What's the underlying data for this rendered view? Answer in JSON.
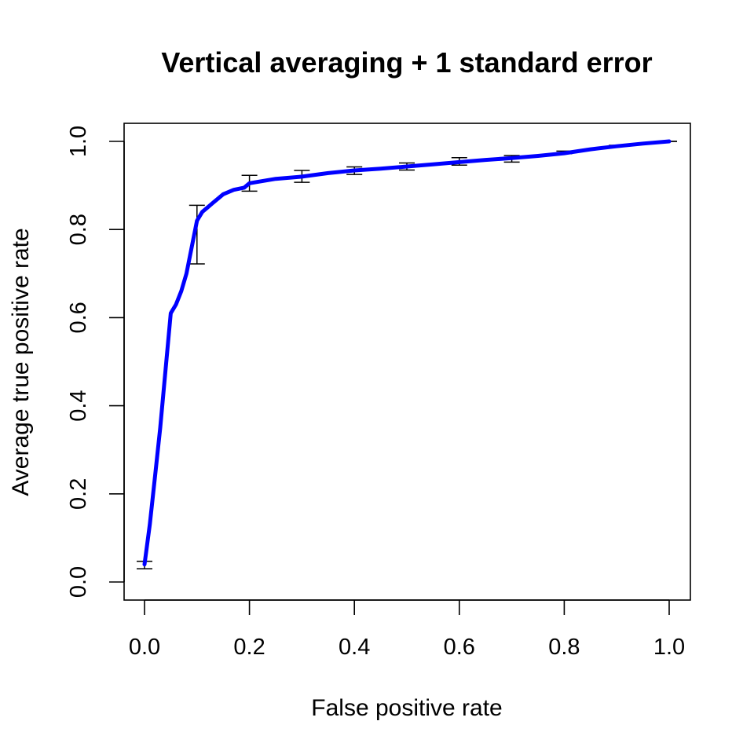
{
  "chart_data": {
    "type": "line",
    "title": "Vertical averaging + 1 standard error",
    "xlabel": "False positive rate",
    "ylabel": "Average true positive rate",
    "xlim": [
      0.0,
      1.0
    ],
    "ylim": [
      0.0,
      1.0
    ],
    "x_ticks": [
      "0.0",
      "0.2",
      "0.4",
      "0.6",
      "0.8",
      "1.0"
    ],
    "y_ticks": [
      "0.0",
      "0.2",
      "0.4",
      "0.6",
      "0.8",
      "1.0"
    ],
    "grid": false,
    "legend": "none",
    "series": [
      {
        "color": "#0000ff",
        "x": [
          0.0,
          0.01,
          0.02,
          0.03,
          0.04,
          0.05,
          0.06,
          0.07,
          0.08,
          0.09,
          0.1,
          0.11,
          0.12,
          0.13,
          0.14,
          0.15,
          0.17,
          0.19,
          0.2,
          0.25,
          0.3,
          0.35,
          0.4,
          0.45,
          0.5,
          0.55,
          0.6,
          0.65,
          0.7,
          0.75,
          0.8,
          0.85,
          0.9,
          0.95,
          1.0
        ],
        "y": [
          0.04,
          0.13,
          0.24,
          0.35,
          0.48,
          0.61,
          0.63,
          0.66,
          0.7,
          0.76,
          0.82,
          0.84,
          0.85,
          0.86,
          0.87,
          0.88,
          0.89,
          0.895,
          0.905,
          0.915,
          0.92,
          0.928,
          0.934,
          0.938,
          0.943,
          0.948,
          0.953,
          0.958,
          0.962,
          0.967,
          0.973,
          0.982,
          0.989,
          0.995,
          1.0
        ]
      }
    ],
    "error_bars": {
      "x": [
        0.0,
        0.1,
        0.2,
        0.3,
        0.4,
        0.5,
        0.6,
        0.7,
        0.8,
        0.9,
        1.0
      ],
      "lower": [
        0.03,
        0.722,
        0.887,
        0.907,
        0.925,
        0.935,
        0.946,
        0.953,
        0.972,
        0.988,
        1.0
      ],
      "upper": [
        0.047,
        0.855,
        0.923,
        0.934,
        0.942,
        0.951,
        0.963,
        0.968,
        0.978,
        0.991,
        1.0
      ]
    }
  }
}
